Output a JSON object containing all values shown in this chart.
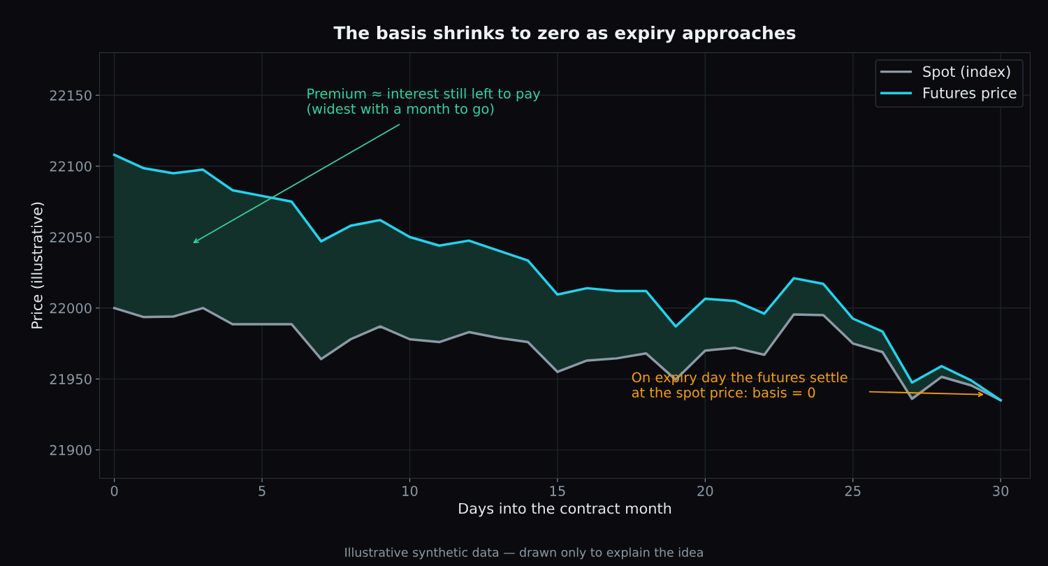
{
  "chart_data": {
    "type": "line",
    "title": "The basis shrinks to zero as expiry approaches",
    "xlabel": "Days into the contract month",
    "ylabel": "Price (illustrative)",
    "x": [
      0,
      1,
      2,
      3,
      4,
      5,
      6,
      7,
      8,
      9,
      10,
      11,
      12,
      13,
      14,
      15,
      16,
      17,
      18,
      19,
      20,
      21,
      22,
      23,
      24,
      25,
      26,
      27,
      28,
      29,
      30
    ],
    "series": [
      {
        "name": "Spot (index)",
        "color": "#8c99a6",
        "values": [
          22000,
          21993.6,
          21994,
          22000,
          21988.6,
          21988.6,
          21988.6,
          21964,
          21978,
          21987,
          21978,
          21976,
          21983,
          21979,
          21976,
          21955,
          21963,
          21964.5,
          21968,
          21949.5,
          21970,
          21972,
          21967,
          21995.5,
          21995,
          21975,
          21969,
          21936,
          21951.5,
          21945.5,
          21935
        ]
      },
      {
        "name": "Futures price",
        "color": "#22d3ee",
        "values": [
          22108,
          22098.5,
          22095,
          22097.5,
          22083,
          22079,
          22075,
          22047,
          22058,
          22062,
          22050,
          22044,
          22047.5,
          22040.5,
          22033.5,
          22009.5,
          22014,
          22012,
          22012,
          21987,
          22006.5,
          22005,
          21996,
          22021,
          22017,
          21992.5,
          21983.5,
          21947.5,
          21959,
          21949,
          21935
        ],
        "lower": [
          22000,
          21993.6,
          21994,
          22000,
          21988.6,
          21988.6,
          21988.6,
          21964,
          21978,
          21987,
          21978,
          21976,
          21983,
          21979,
          21976,
          21955,
          21963,
          21964.5,
          21968,
          21949.5,
          21970,
          21972,
          21967,
          21995.5,
          21995,
          21975,
          21969,
          21936,
          21951.5,
          21945.5,
          21935
        ],
        "upper": [
          22108,
          22098.5,
          22095,
          22097.5,
          22083,
          22079,
          22075,
          22047,
          22058,
          22062,
          22050,
          22044,
          22047.5,
          22040.5,
          22033.5,
          22009.5,
          22014,
          22012,
          22012,
          21987,
          22006.5,
          22005,
          21996,
          22021,
          22017,
          21992.5,
          21983.5,
          21947.5,
          21959,
          21949,
          21935
        ]
      }
    ],
    "xlim": [
      -0.5,
      31
    ],
    "ylim": [
      21880,
      22180
    ],
    "xticks": [
      0,
      5,
      10,
      15,
      20,
      25,
      30
    ],
    "yticks": [
      21900,
      21950,
      22000,
      22050,
      22100,
      22150
    ],
    "grid": true,
    "legend": "top right",
    "marker": "none",
    "line_style": "solid",
    "annotations": [
      "Premium ≈ interest still left to pay\n(widest with a month to go)",
      "On expiry day the futures settle\nat the spot price: basis = 0",
      "Illustrative synthetic data — drawn only to explain the idea"
    ]
  }
}
